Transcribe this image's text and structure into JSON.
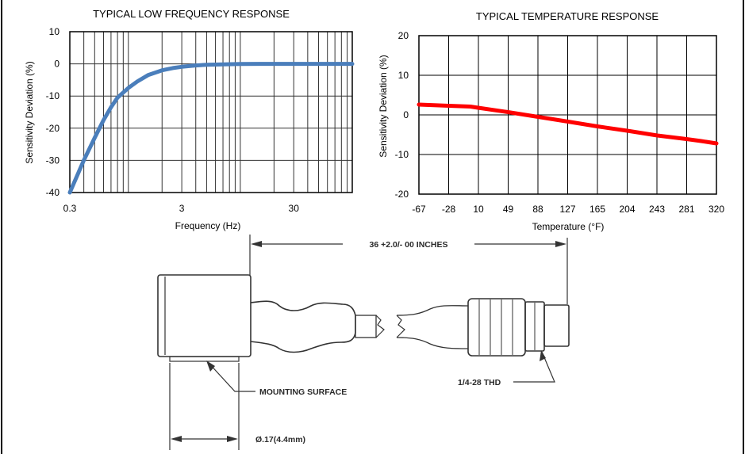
{
  "chart_data": [
    {
      "type": "line",
      "title": "TYPICAL LOW FREQUENCY RESPONSE",
      "xlabel": "Frequency (Hz)",
      "ylabel": "Sensitivity Deviation (%)",
      "xscale": "log",
      "xlim": [
        0.3,
        100
      ],
      "ylim": [
        -40,
        10
      ],
      "xticks": [
        "0.3",
        "3",
        "30"
      ],
      "xtick_values": [
        0.3,
        3,
        30
      ],
      "yticks": [
        "10",
        "0",
        "-10",
        "-20",
        "-30",
        "-40"
      ],
      "ytick_values": [
        10,
        0,
        -10,
        -20,
        -30,
        -40
      ],
      "grid": true,
      "series": [
        {
          "color": "#4a7ebb",
          "x": [
            0.3,
            0.4,
            0.5,
            0.6,
            0.7,
            0.8,
            1.0,
            1.2,
            1.5,
            2.0,
            2.5,
            3.0,
            4.0,
            5.0,
            7.0,
            10,
            15,
            20,
            30,
            50,
            70,
            100
          ],
          "y": [
            -40,
            -30,
            -23,
            -17.5,
            -13.5,
            -10.5,
            -7.5,
            -5.5,
            -3.5,
            -2,
            -1.3,
            -0.9,
            -0.5,
            -0.3,
            -0.15,
            -0.05,
            0,
            0,
            0,
            0,
            0,
            0
          ]
        }
      ]
    },
    {
      "type": "line",
      "title": "TYPICAL TEMPERATURE RESPONSE",
      "xlabel": "Temperature (°F)",
      "ylabel": "Sensitivity Deviation (%)",
      "xlim": [
        -67,
        320
      ],
      "ylim": [
        -20,
        20
      ],
      "xticks": [
        "-67",
        "-28",
        "10",
        "49",
        "88",
        "127",
        "165",
        "204",
        "243",
        "281",
        "320"
      ],
      "yticks": [
        "20",
        "10",
        "0",
        "-10",
        "-20"
      ],
      "ytick_values": [
        20,
        10,
        0,
        -10,
        -20
      ],
      "grid": true,
      "series": [
        {
          "color": "#ff0000",
          "x": [
            -67,
            -28,
            0,
            10,
            49,
            88,
            127,
            165,
            204,
            243,
            281,
            300,
            320
          ],
          "y": [
            2.6,
            2.3,
            2.1,
            1.8,
            0.7,
            -0.5,
            -1.7,
            -2.9,
            -4.0,
            -5.2,
            -6.1,
            -6.6,
            -7.2
          ]
        }
      ]
    }
  ],
  "drawing": {
    "cable_length_label": "36 +2.0/- 00 INCHES",
    "thread_label": "1/4-28 THD",
    "mounting_label": "MOUNTING SURFACE",
    "width_label": "Ø.17(4.4mm)"
  }
}
